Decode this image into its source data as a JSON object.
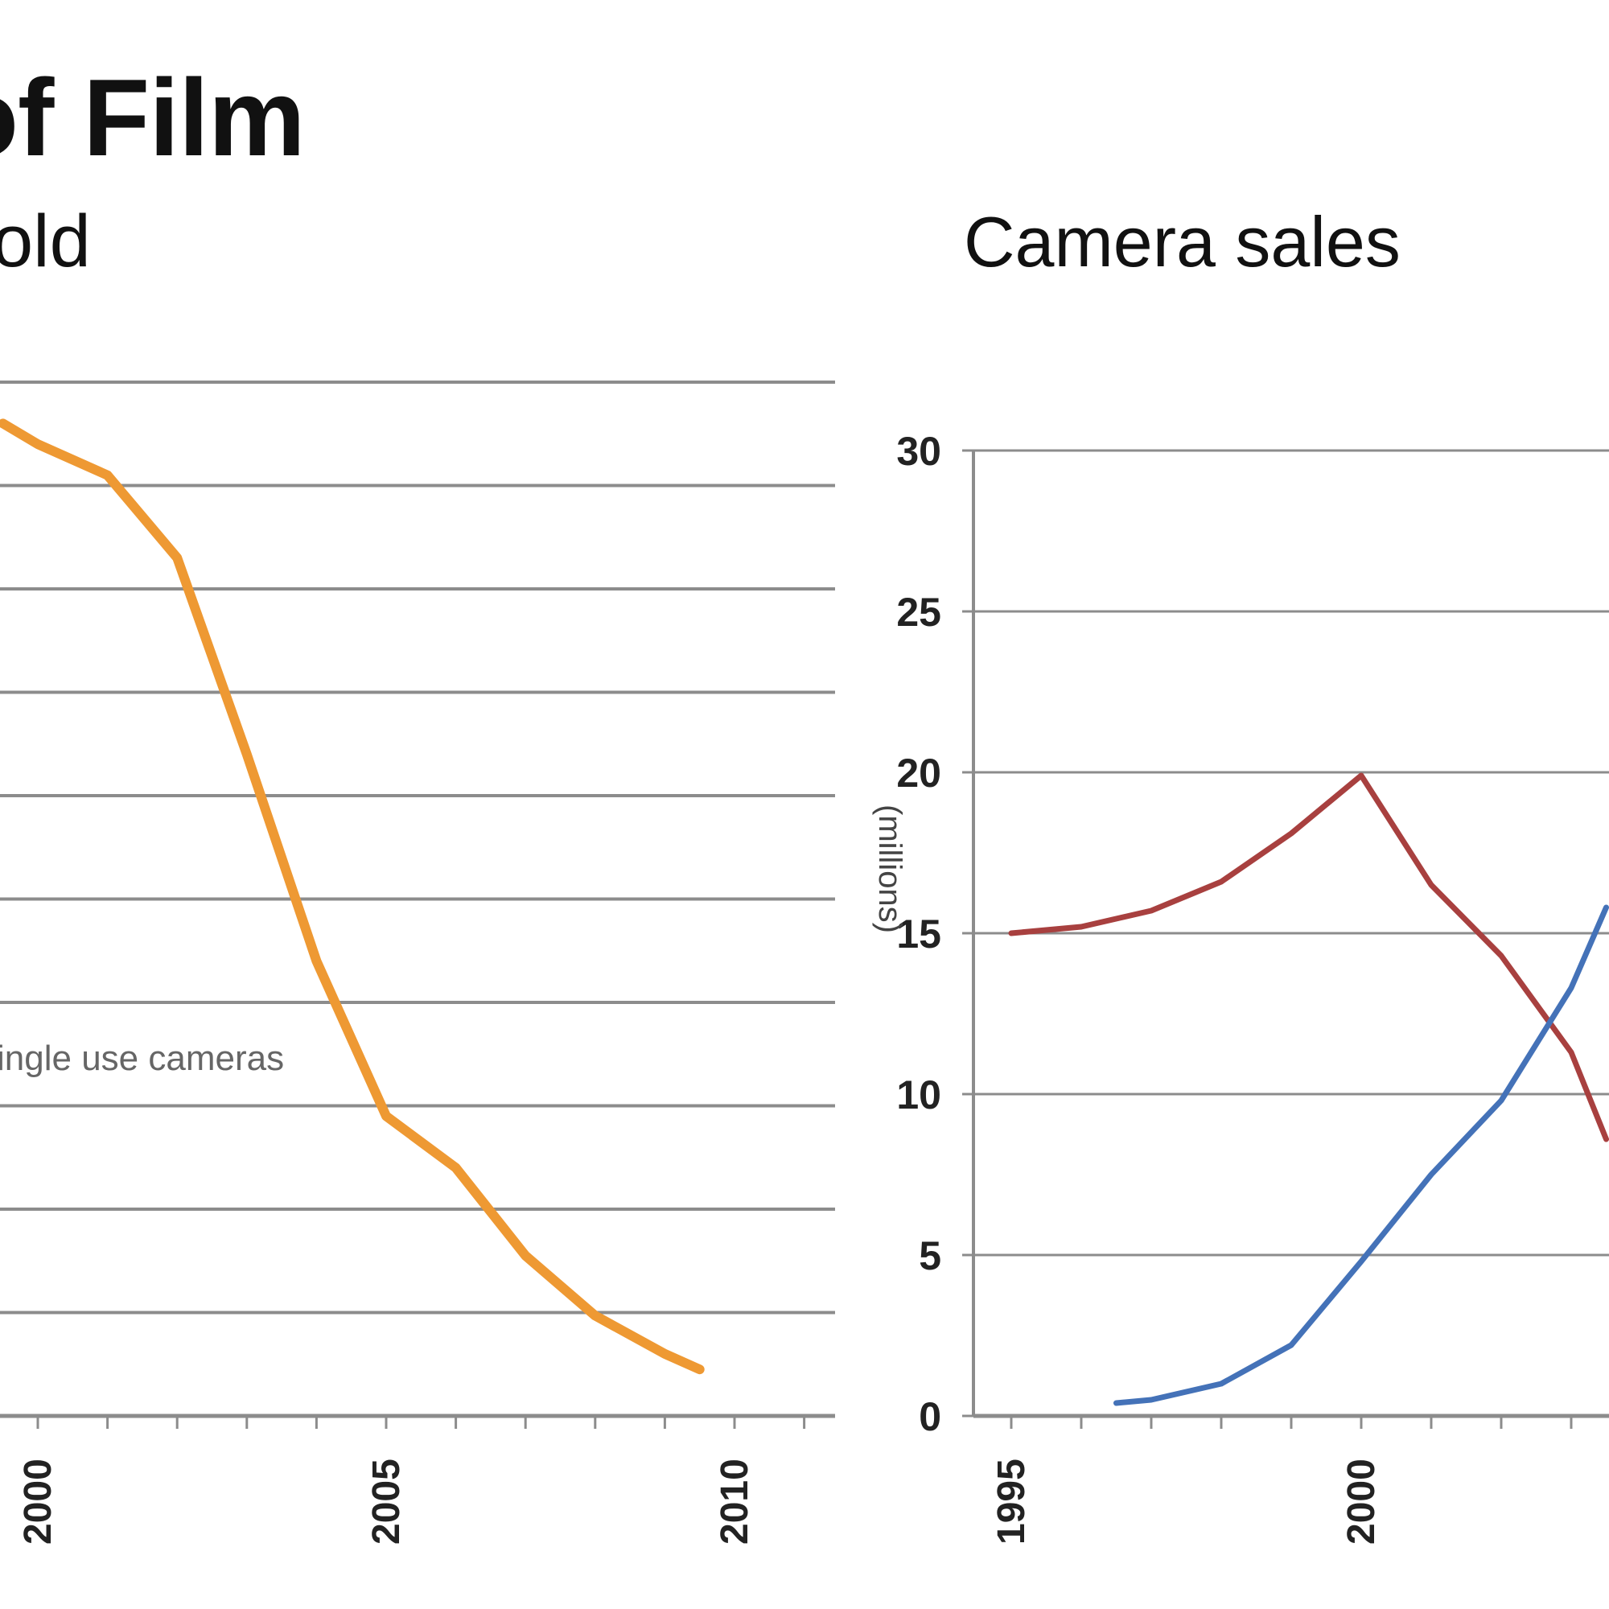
{
  "headline": "of Film",
  "colors": {
    "film": "#ee9933",
    "film_cameras": "#a8403f",
    "digital_cameras": "#4472b8",
    "grid": "#8c8c8c",
    "text": "#111111"
  },
  "chart_data": [
    {
      "type": "line",
      "title": "old",
      "xlabel": "",
      "ylabel": "",
      "x_ticks": [
        "2000",
        "2005",
        "2010"
      ],
      "xlim": [
        2000,
        2011.8
      ],
      "annotations": [
        {
          "text": "ingle use cameras"
        }
      ],
      "series": [
        {
          "color": "#ee9933",
          "x": [
            1999.5,
            2000,
            2001,
            2002,
            2003,
            2004,
            2005,
            2006,
            2007,
            2008,
            2009,
            2009.5
          ],
          "y": [
            9.6,
            9.4,
            9.1,
            8.3,
            6.4,
            4.4,
            2.9,
            2.4,
            1.55,
            0.97,
            0.6,
            0.45
          ]
        }
      ]
    },
    {
      "type": "line",
      "title": "Camera sales",
      "ylabel": "(millions)",
      "xlabel": "",
      "y_ticks": [
        "0",
        "5",
        "10",
        "15",
        "20",
        "25",
        "30"
      ],
      "x_ticks": [
        "1995",
        "2000"
      ],
      "ylim": [
        0,
        30
      ],
      "grid": true,
      "series": [
        {
          "color": "#a8403f",
          "x": [
            1995,
            1996,
            1997,
            1998,
            1999,
            2000,
            2001,
            2002,
            2003,
            2003.5
          ],
          "y": [
            15.0,
            15.2,
            15.7,
            16.6,
            18.1,
            19.9,
            16.5,
            14.3,
            11.3,
            8.6
          ]
        },
        {
          "color": "#4472b8",
          "x": [
            1996.5,
            1997,
            1998,
            1999,
            2000,
            2001,
            2002,
            2003,
            2003.5
          ],
          "y": [
            0.4,
            0.5,
            1.0,
            2.2,
            4.8,
            7.5,
            9.8,
            13.3,
            15.8
          ]
        }
      ]
    }
  ]
}
